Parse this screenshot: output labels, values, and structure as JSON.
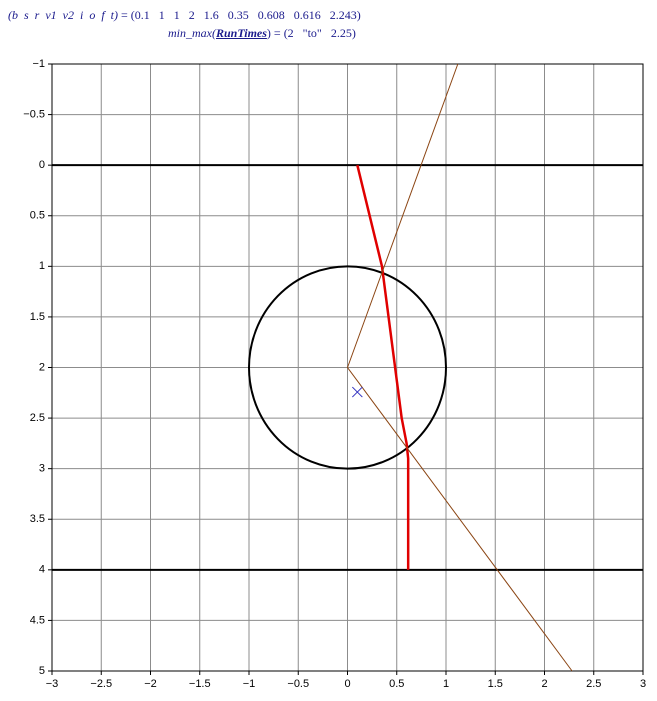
{
  "header": {
    "line1": {
      "lhs": "(b  s  r  v1  v2  i  o  f  t)",
      "op": "=",
      "rhs": "(0.1   1   1   2   1.6   0.35   0.608   0.616   2.243)"
    },
    "line2": {
      "func": "min_max(",
      "arg": "RunTimes",
      "close": ")",
      "op": "=",
      "rhs": "(2   \"to\"   2.25)"
    }
  },
  "chart_data": {
    "type": "line",
    "xlim": [
      -3,
      3
    ],
    "xticks": [
      {
        "value": -3,
        "label": "−3"
      },
      {
        "value": -2.5,
        "label": "−2.5"
      },
      {
        "value": -2,
        "label": "−2"
      },
      {
        "value": -1.5,
        "label": "−1.5"
      },
      {
        "value": -1,
        "label": "−1"
      },
      {
        "value": -0.5,
        "label": "−0.5"
      },
      0,
      0.5,
      1,
      1.5,
      2,
      2.5,
      3
    ],
    "ylim": [
      -1,
      5
    ],
    "y_inverted": true,
    "yticks": [
      {
        "value": -1,
        "label": "−1"
      },
      {
        "value": -0.5,
        "label": "−0.5"
      },
      0,
      0.5,
      1,
      1.5,
      2,
      2.5,
      3,
      3.5,
      4,
      4.5,
      5
    ],
    "grid": true,
    "series": [
      {
        "color": "#000000",
        "line_width": 2,
        "x": [
          -3,
          3
        ],
        "values": [
          0,
          0
        ]
      },
      {
        "color": "#000000",
        "line_width": 2,
        "x": [
          -3,
          3
        ],
        "values": [
          4,
          4
        ]
      },
      {
        "color": "#e00000",
        "line_width": 2.5,
        "x": [
          0.1,
          0.35,
          0.55,
          0.6,
          0.616,
          0.616
        ],
        "values": [
          0,
          1,
          2.5,
          2.75,
          2.9,
          4
        ]
      },
      {
        "color": "#8b4513",
        "line_width": 1,
        "x": [
          1.12,
          0,
          2.28
        ],
        "values": [
          -1,
          2,
          5
        ]
      }
    ],
    "circles": [
      {
        "cx": 0,
        "cy": 2,
        "r": 1,
        "color": "#000000"
      }
    ],
    "markers": [
      {
        "x": 0.1,
        "y": 2.243,
        "color": "#3030c0"
      }
    ]
  }
}
